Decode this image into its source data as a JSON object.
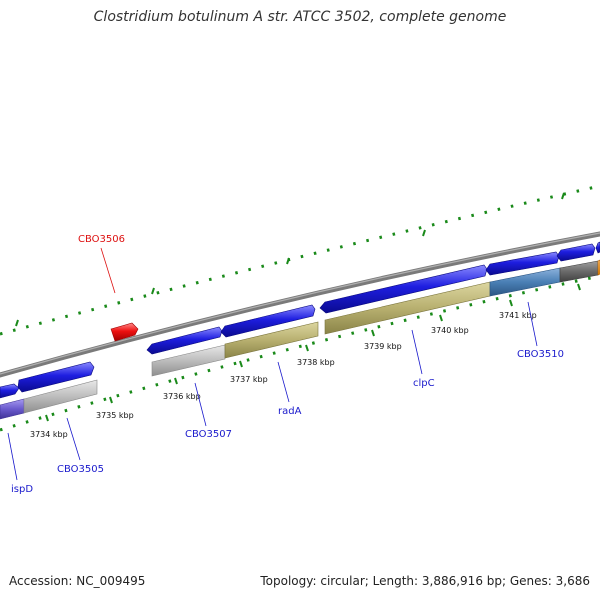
{
  "title": "Clostridium botulinum A str. ATCC 3502, complete genome",
  "accession_text": "Accession: NC_009495",
  "stats_text": "Topology: circular; Length: 3,886,916 bp; Genes: 3,686",
  "colors": {
    "backbone": "#808080",
    "cds_forward": "#1e1ee0",
    "cds_reverse": "#ee1111",
    "gene_grey": "#bdbdbd",
    "gene_khaki": "#b8b070",
    "gene_steel": "#4a7fb5",
    "gene_dark": "#6a6a6a",
    "gene_purple": "#6a5acd",
    "label_forward": "#1a1acc",
    "label_reverse": "#dd1111",
    "tick": "#1a8a1a"
  },
  "scale_labels": [
    "3734 kbp",
    "3735 kbp",
    "3736 kbp",
    "3737 kbp",
    "3738 kbp",
    "3739 kbp",
    "3740 kbp",
    "3741 kbp"
  ],
  "gene_labels": [
    "ispD",
    "CBO3505",
    "CBO3506",
    "CBO3507",
    "radA",
    "clpC",
    "CBO3510"
  ]
}
